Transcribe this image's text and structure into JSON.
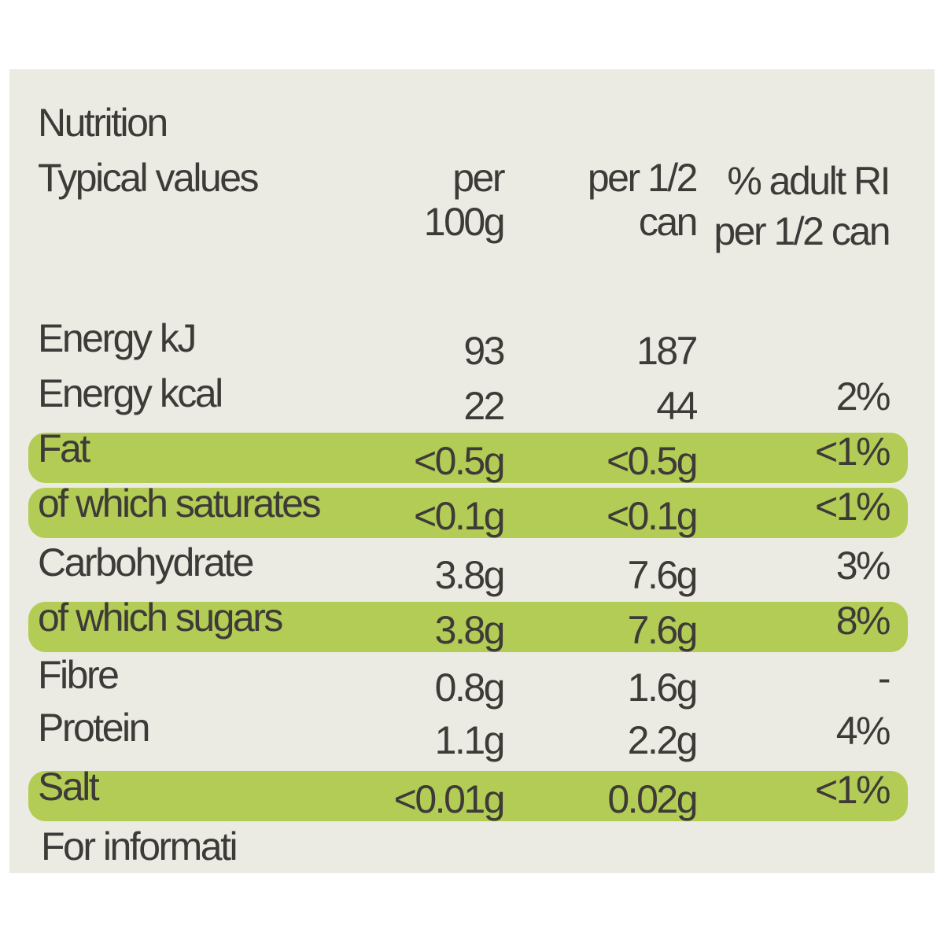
{
  "title": "Nutrition",
  "header": {
    "label": "Typical values",
    "per100g": "per 100g",
    "perHalfCan": "per 1/2 can",
    "ri": "% adult RI per 1/2 can"
  },
  "rows": [
    {
      "label": "Energy kJ",
      "per100g": "93",
      "perHalfCan": "187",
      "highlight": false
    },
    {
      "label": "Energy kcal",
      "per100g": "22",
      "perHalfCan": "44",
      "ri": "2%",
      "highlight": false
    },
    {
      "label": "Fat",
      "per100g": "<0.5g",
      "perHalfCan": "<0.5g",
      "ri": "<1%",
      "highlight": true
    },
    {
      "label": "of which saturates",
      "per100g": "<0.1g",
      "perHalfCan": "<0.1g",
      "ri": "<1%",
      "highlight": true
    },
    {
      "label": "Carbohydrate",
      "per100g": "3.8g",
      "perHalfCan": "7.6g",
      "ri": "3%",
      "highlight": false
    },
    {
      "label": "of which sugars",
      "per100g": "3.8g",
      "perHalfCan": "7.6g",
      "ri": "8%",
      "highlight": true
    },
    {
      "label": "Fibre",
      "per100g": "0.8g",
      "perHalfCan": "1.6g",
      "ri": "-",
      "highlight": false
    },
    {
      "label": "Protein",
      "per100g": "1.1g",
      "perHalfCan": "2.2g",
      "ri": "4%",
      "highlight": false
    },
    {
      "label": "Salt",
      "per100g": "<0.01g",
      "perHalfCan": "0.02g",
      "ri": "<1%",
      "highlight": true
    }
  ],
  "footer": "For informati"
}
